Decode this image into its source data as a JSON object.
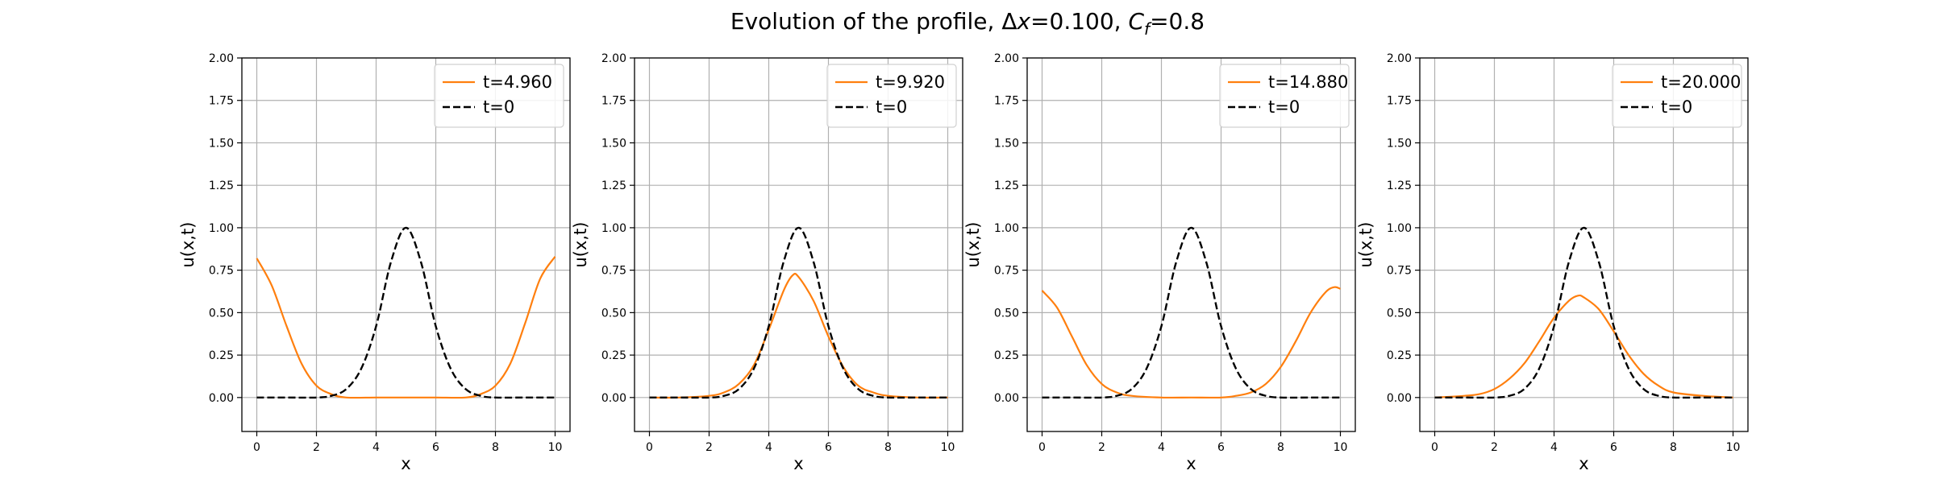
{
  "figure": {
    "title_prefix": "Evolution of the profile, Δ",
    "title_x": "x",
    "title_mid": "=0.100, ",
    "title_c": "C",
    "title_sub": "f",
    "title_suffix": "=0.8"
  },
  "chart_data": [
    {
      "type": "line",
      "xlabel": "x",
      "ylabel": "u(x,t)",
      "xlim": [
        -0.5,
        10.5
      ],
      "ylim": [
        -0.2,
        2.0
      ],
      "xticks": [
        0,
        2,
        4,
        6,
        8,
        10
      ],
      "yticks": [
        "0.00",
        "0.25",
        "0.50",
        "0.75",
        "1.00",
        "1.25",
        "1.50",
        "1.75",
        "2.00"
      ],
      "grid": true,
      "legend_position": "top-right",
      "series": [
        {
          "name": "t=4.960",
          "color": "#ff7f0e",
          "style": "solid",
          "x": [
            0,
            0.5,
            1,
            1.5,
            2,
            2.5,
            3,
            4,
            5,
            6,
            7,
            7.5,
            8,
            8.5,
            9,
            9.5,
            10
          ],
          "y": [
            0.82,
            0.66,
            0.42,
            0.2,
            0.07,
            0.02,
            0.0,
            0.0,
            0.0,
            0.0,
            0.0,
            0.02,
            0.07,
            0.2,
            0.44,
            0.7,
            0.83
          ]
        },
        {
          "name": "t=0",
          "color": "#000000",
          "style": "dashed",
          "x": [
            0,
            1,
            2,
            2.5,
            3,
            3.5,
            4,
            4.5,
            5,
            5.5,
            6,
            6.5,
            7,
            7.5,
            8,
            9,
            10
          ],
          "y": [
            0.0,
            0.0,
            0.0,
            0.01,
            0.05,
            0.17,
            0.42,
            0.8,
            1.0,
            0.8,
            0.42,
            0.17,
            0.05,
            0.01,
            0.0,
            0.0,
            0.0
          ]
        }
      ]
    },
    {
      "type": "line",
      "xlabel": "x",
      "ylabel": "u(x,t)",
      "xlim": [
        -0.5,
        10.5
      ],
      "ylim": [
        -0.2,
        2.0
      ],
      "xticks": [
        0,
        2,
        4,
        6,
        8,
        10
      ],
      "yticks": [
        "0.00",
        "0.25",
        "0.50",
        "0.75",
        "1.00",
        "1.25",
        "1.50",
        "1.75",
        "2.00"
      ],
      "grid": true,
      "legend_position": "top-right",
      "series": [
        {
          "name": "t=9.920",
          "color": "#ff7f0e",
          "style": "solid",
          "x": [
            0,
            1,
            2,
            2.5,
            3,
            3.5,
            4,
            4.5,
            4.8,
            5,
            5.5,
            6,
            6.5,
            7,
            7.5,
            8,
            9,
            10
          ],
          "y": [
            0.0,
            0.0,
            0.01,
            0.03,
            0.08,
            0.19,
            0.4,
            0.63,
            0.72,
            0.71,
            0.57,
            0.36,
            0.18,
            0.07,
            0.03,
            0.01,
            0.0,
            0.0
          ]
        },
        {
          "name": "t=0",
          "color": "#000000",
          "style": "dashed",
          "x": [
            0,
            1,
            2,
            2.5,
            3,
            3.5,
            4,
            4.5,
            5,
            5.5,
            6,
            6.5,
            7,
            7.5,
            8,
            9,
            10
          ],
          "y": [
            0.0,
            0.0,
            0.0,
            0.01,
            0.05,
            0.17,
            0.42,
            0.8,
            1.0,
            0.8,
            0.42,
            0.17,
            0.05,
            0.01,
            0.0,
            0.0,
            0.0
          ]
        }
      ]
    },
    {
      "type": "line",
      "xlabel": "x",
      "ylabel": "u(x,t)",
      "xlim": [
        -0.5,
        10.5
      ],
      "ylim": [
        -0.2,
        2.0
      ],
      "xticks": [
        0,
        2,
        4,
        6,
        8,
        10
      ],
      "yticks": [
        "0.00",
        "0.25",
        "0.50",
        "0.75",
        "1.00",
        "1.25",
        "1.50",
        "1.75",
        "2.00"
      ],
      "grid": true,
      "legend_position": "top-right",
      "series": [
        {
          "name": "t=14.880",
          "color": "#ff7f0e",
          "style": "solid",
          "x": [
            0,
            0.5,
            1,
            1.5,
            2,
            2.5,
            3,
            4,
            5,
            6,
            6.5,
            7,
            7.5,
            8,
            8.5,
            9,
            9.5,
            9.8,
            10
          ],
          "y": [
            0.63,
            0.53,
            0.36,
            0.19,
            0.08,
            0.03,
            0.01,
            0.0,
            0.0,
            0.0,
            0.01,
            0.03,
            0.08,
            0.18,
            0.33,
            0.5,
            0.62,
            0.65,
            0.64
          ]
        },
        {
          "name": "t=0",
          "color": "#000000",
          "style": "dashed",
          "x": [
            0,
            1,
            2,
            2.5,
            3,
            3.5,
            4,
            4.5,
            5,
            5.5,
            6,
            6.5,
            7,
            7.5,
            8,
            9,
            10
          ],
          "y": [
            0.0,
            0.0,
            0.0,
            0.01,
            0.05,
            0.17,
            0.42,
            0.8,
            1.0,
            0.8,
            0.42,
            0.17,
            0.05,
            0.01,
            0.0,
            0.0,
            0.0
          ]
        }
      ]
    },
    {
      "type": "line",
      "xlabel": "x",
      "ylabel": "u(x,t)",
      "xlim": [
        -0.5,
        10.5
      ],
      "ylim": [
        -0.2,
        2.0
      ],
      "xticks": [
        0,
        2,
        4,
        6,
        8,
        10
      ],
      "yticks": [
        "0.00",
        "0.25",
        "0.50",
        "0.75",
        "1.00",
        "1.25",
        "1.50",
        "1.75",
        "2.00"
      ],
      "grid": true,
      "legend_position": "top-right",
      "series": [
        {
          "name": "t=20.000",
          "color": "#ff7f0e",
          "style": "solid",
          "x": [
            0,
            1,
            1.5,
            2,
            2.5,
            3,
            3.5,
            4,
            4.5,
            4.8,
            5,
            5.5,
            6,
            6.5,
            7,
            7.5,
            8,
            9,
            10
          ],
          "y": [
            0.0,
            0.01,
            0.02,
            0.05,
            0.11,
            0.2,
            0.33,
            0.47,
            0.57,
            0.6,
            0.59,
            0.52,
            0.39,
            0.25,
            0.14,
            0.07,
            0.03,
            0.01,
            0.0
          ]
        },
        {
          "name": "t=0",
          "color": "#000000",
          "style": "dashed",
          "x": [
            0,
            1,
            2,
            2.5,
            3,
            3.5,
            4,
            4.5,
            5,
            5.5,
            6,
            6.5,
            7,
            7.5,
            8,
            9,
            10
          ],
          "y": [
            0.0,
            0.0,
            0.0,
            0.01,
            0.05,
            0.17,
            0.42,
            0.8,
            1.0,
            0.8,
            0.42,
            0.17,
            0.05,
            0.01,
            0.0,
            0.0,
            0.0
          ]
        }
      ]
    }
  ]
}
